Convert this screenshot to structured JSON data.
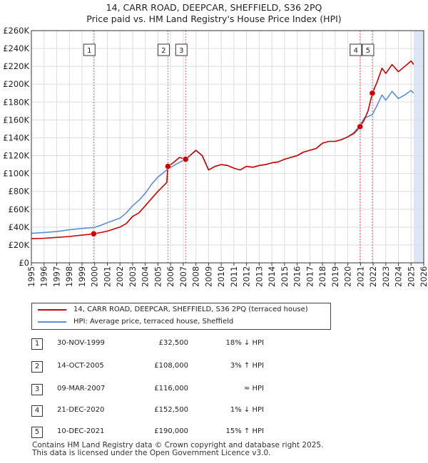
{
  "title_line1": "14, CARR ROAD, DEEPCAR, SHEFFIELD, S36 2PQ",
  "title_line2": "Price paid vs. HM Land Registry's House Price Index (HPI)",
  "legend": {
    "property": "14, CARR ROAD, DEEPCAR, SHEFFIELD, S36 2PQ (terraced house)",
    "hpi": "HPI: Average price, terraced house, Sheffield"
  },
  "colors": {
    "property": "#cc0000",
    "hpi": "#5b8ed2",
    "shade": "#dde6f5",
    "grid": "#dddddd",
    "vline": "#dd6666"
  },
  "transactions": [
    {
      "num": "1",
      "date": "30-NOV-1999",
      "price": "£32,500",
      "hpi": "18% ↓ HPI"
    },
    {
      "num": "2",
      "date": "14-OCT-2005",
      "price": "£108,000",
      "hpi": "3% ↑ HPI"
    },
    {
      "num": "3",
      "date": "09-MAR-2007",
      "price": "£116,000",
      "hpi": "≈ HPI"
    },
    {
      "num": "4",
      "date": "21-DEC-2020",
      "price": "£152,500",
      "hpi": "1% ↓ HPI"
    },
    {
      "num": "5",
      "date": "10-DEC-2021",
      "price": "£190,000",
      "hpi": "15% ↑ HPI"
    }
  ],
  "footer_line1": "Contains HM Land Registry data © Crown copyright and database right 2025.",
  "footer_line2": "This data is licensed under the Open Government Licence v3.0.",
  "chart_data": {
    "type": "line",
    "title": "14, CARR ROAD, DEEPCAR, SHEFFIELD, S36 2PQ — Price paid vs. HM Land Registry's House Price Index (HPI)",
    "xlabel": "",
    "ylabel": "",
    "xlim": [
      1995,
      2026
    ],
    "ylim": [
      0,
      260000
    ],
    "yticks": [
      0,
      20000,
      40000,
      60000,
      80000,
      100000,
      120000,
      140000,
      160000,
      180000,
      200000,
      220000,
      240000,
      260000
    ],
    "ytick_labels": [
      "£0",
      "£20K",
      "£40K",
      "£60K",
      "£80K",
      "£100K",
      "£120K",
      "£140K",
      "£160K",
      "£180K",
      "£200K",
      "£220K",
      "£240K",
      "£260K"
    ],
    "xticks": [
      1995,
      1996,
      1997,
      1998,
      1999,
      2000,
      2001,
      2002,
      2003,
      2004,
      2005,
      2006,
      2007,
      2008,
      2009,
      2010,
      2011,
      2012,
      2013,
      2014,
      2015,
      2016,
      2017,
      2018,
      2019,
      2020,
      2021,
      2022,
      2023,
      2024,
      2025,
      2026
    ],
    "shaded_future_from": 2025.2,
    "sale_markers": [
      {
        "label": "1",
        "x": 1999.92,
        "y": 32500
      },
      {
        "label": "2",
        "x": 2005.79,
        "y": 108000
      },
      {
        "label": "3",
        "x": 2007.19,
        "y": 116000
      },
      {
        "label": "4",
        "x": 2020.97,
        "y": 152500
      },
      {
        "label": "5",
        "x": 2021.94,
        "y": 190000
      }
    ],
    "series": [
      {
        "name": "14, CARR ROAD, DEEPCAR, SHEFFIELD, S36 2PQ (terraced house)",
        "color": "#cc0000",
        "x": [
          1995,
          1996,
          1997,
          1998,
          1999,
          1999.92,
          2000.5,
          2001,
          2002,
          2002.5,
          2003,
          2003.5,
          2004,
          2004.5,
          2005,
          2005.7,
          2005.79,
          2006.2,
          2006.7,
          2007.19,
          2007.6,
          2008,
          2008.5,
          2009,
          2009.5,
          2010,
          2010.5,
          2011,
          2011.5,
          2012,
          2012.5,
          2013,
          2013.5,
          2014,
          2014.5,
          2015,
          2015.5,
          2016,
          2016.5,
          2017,
          2017.5,
          2018,
          2018.5,
          2019,
          2019.5,
          2020,
          2020.5,
          2020.97,
          2021.3,
          2021.6,
          2021.94,
          2022.3,
          2022.7,
          2023,
          2023.5,
          2024,
          2024.5,
          2025,
          2025.2
        ],
        "y": [
          27000,
          27500,
          28500,
          29500,
          31000,
          32500,
          34000,
          35500,
          40000,
          44000,
          52000,
          56000,
          64000,
          72000,
          80000,
          90000,
          108000,
          112000,
          118000,
          116000,
          121000,
          126000,
          120000,
          104000,
          108000,
          110000,
          109000,
          106000,
          104000,
          108000,
          107000,
          109000,
          110000,
          112000,
          113000,
          116000,
          118000,
          120000,
          124000,
          126000,
          128000,
          134000,
          136000,
          136000,
          138000,
          141000,
          145000,
          152500,
          160000,
          170000,
          190000,
          202000,
          218000,
          212000,
          222000,
          214000,
          220000,
          226000,
          222000
        ]
      },
      {
        "name": "HPI: Average price, terraced house, Sheffield",
        "color": "#5b8ed2",
        "x": [
          1995,
          1996,
          1997,
          1998,
          1999,
          1999.92,
          2000.5,
          2001,
          2002,
          2002.5,
          2003,
          2003.5,
          2004,
          2004.5,
          2005,
          2005.79,
          2006.5,
          2007.19,
          2007.6,
          2008,
          2008.5,
          2009,
          2009.5,
          2010,
          2010.5,
          2011,
          2011.5,
          2012,
          2012.5,
          2013,
          2013.5,
          2014,
          2014.5,
          2015,
          2015.5,
          2016,
          2016.5,
          2017,
          2017.5,
          2018,
          2018.5,
          2019,
          2019.5,
          2020,
          2020.5,
          2020.97,
          2021.3,
          2021.94,
          2022.3,
          2022.7,
          2023,
          2023.5,
          2024,
          2024.5,
          2025,
          2025.2
        ],
        "y": [
          33000,
          34000,
          35000,
          37000,
          38500,
          39500,
          42000,
          45000,
          50000,
          56000,
          64000,
          70000,
          78000,
          88000,
          96000,
          105000,
          111000,
          116000,
          121000,
          126000,
          120000,
          104000,
          108000,
          110000,
          109000,
          106000,
          104000,
          108000,
          107000,
          109000,
          110000,
          112000,
          113000,
          116000,
          118000,
          120000,
          124000,
          126000,
          128000,
          134000,
          136000,
          136000,
          138000,
          141000,
          146000,
          154000,
          162000,
          166000,
          176000,
          188000,
          182000,
          192000,
          184000,
          188000,
          193000,
          190000
        ]
      }
    ]
  }
}
